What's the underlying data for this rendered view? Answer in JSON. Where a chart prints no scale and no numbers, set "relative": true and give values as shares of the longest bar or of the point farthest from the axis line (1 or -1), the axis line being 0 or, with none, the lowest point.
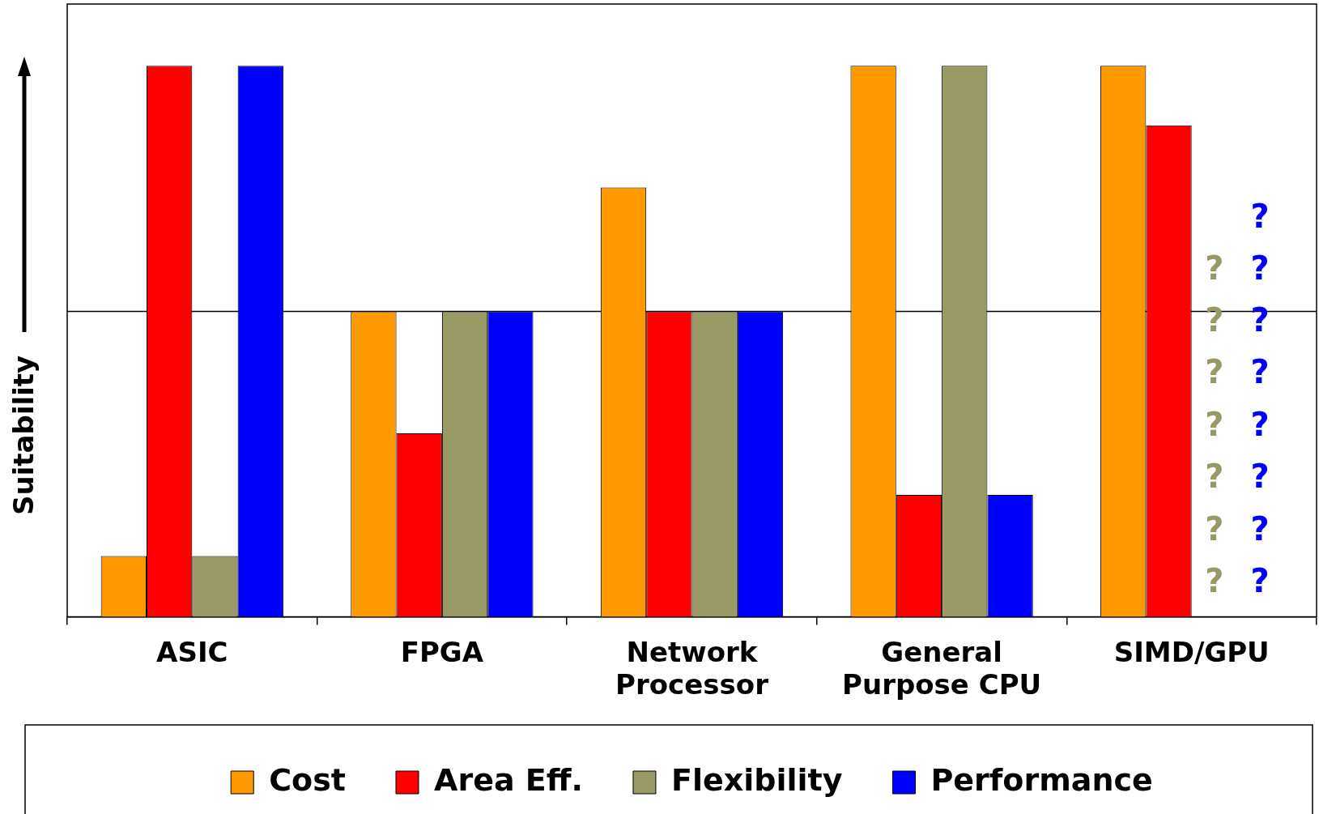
{
  "chart_data": {
    "type": "bar",
    "relative": true,
    "ylabel": "Suitability",
    "legend": "bottom",
    "grid": false,
    "categories": [
      "ASIC",
      "FPGA",
      "Network Processor",
      "General Purpose CPU",
      "SIMD/GPU"
    ],
    "series": [
      {
        "name": "Cost",
        "color": "#ff9900",
        "values": [
          0.11,
          0.554,
          0.779,
          1,
          1
        ]
      },
      {
        "name": "Area Eff.",
        "color": "#ff0000",
        "values": [
          1,
          0.333,
          0.554,
          0.221,
          0.892
        ]
      },
      {
        "name": "Flexibility",
        "color": "#999966",
        "values": [
          0.11,
          0.554,
          0.554,
          1,
          null
        ]
      },
      {
        "name": "Performance",
        "color": "#0000ff",
        "values": [
          1,
          0.554,
          0.554,
          0.221,
          null
        ]
      }
    ],
    "ref_lines": [
      {
        "axis": "y",
        "value": 0.554,
        "color": "#000000"
      }
    ],
    "annotations": [
      {
        "text": "?",
        "x": "SIMD/GPU",
        "y": 0.722
      },
      {
        "text": "?",
        "x": "SIMD/GPU",
        "y": 0.628
      },
      {
        "text": "?",
        "x": "SIMD/GPU",
        "y": 0.628
      },
      {
        "text": "?",
        "x": "SIMD/GPU",
        "y": 0.534
      },
      {
        "text": "?",
        "x": "SIMD/GPU",
        "y": 0.534
      },
      {
        "text": "?",
        "x": "SIMD/GPU",
        "y": 0.439
      },
      {
        "text": "?",
        "x": "SIMD/GPU",
        "y": 0.439
      },
      {
        "text": "?",
        "x": "SIMD/GPU",
        "y": 0.343
      },
      {
        "text": "?",
        "x": "SIMD/GPU",
        "y": 0.343
      },
      {
        "text": "?",
        "x": "SIMD/GPU",
        "y": 0.249
      },
      {
        "text": "?",
        "x": "SIMD/GPU",
        "y": 0.249
      },
      {
        "text": "?",
        "x": "SIMD/GPU",
        "y": 0.154
      },
      {
        "text": "?",
        "x": "SIMD/GPU",
        "y": 0.154
      },
      {
        "text": "?",
        "x": "SIMD/GPU",
        "y": 0.06
      },
      {
        "text": "?",
        "x": "SIMD/GPU",
        "y": 0.06
      }
    ]
  }
}
